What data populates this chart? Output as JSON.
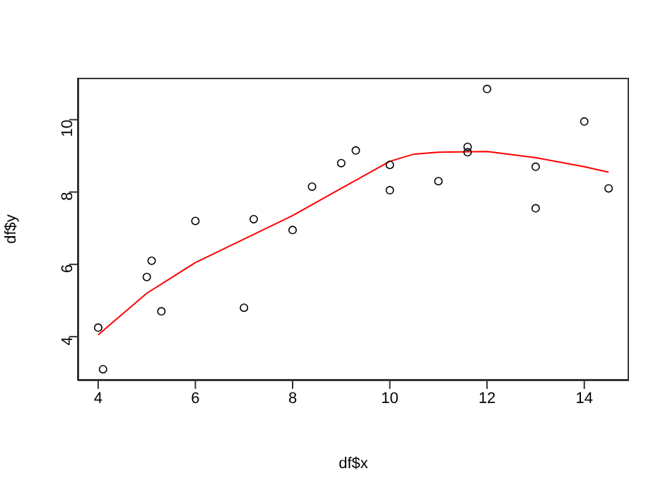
{
  "chart_data": {
    "type": "scatter",
    "xlabel": "df$x",
    "ylabel": "df$y",
    "xlim": [
      3.58,
      14.92
    ],
    "xticks": [
      4,
      6,
      8,
      10,
      12,
      14
    ],
    "ylim": [
      2.79,
      11.16
    ],
    "yticks": [
      4,
      6,
      8,
      10
    ],
    "grid": false,
    "marker": "circle",
    "series": [
      {
        "color": "#000000",
        "x": [
          4,
          4.1,
          5,
          5.1,
          5.3,
          6,
          7,
          7.2,
          8,
          8.4,
          9,
          9.3,
          10,
          10,
          11,
          11.6,
          11.6,
          12,
          13,
          13,
          14,
          14.5
        ],
        "values": [
          4.25,
          3.1,
          5.65,
          6.1,
          4.7,
          7.2,
          4.8,
          7.25,
          6.95,
          8.15,
          8.8,
          9.15,
          8.75,
          8.05,
          8.3,
          9.25,
          9.1,
          10.85,
          8.7,
          7.55,
          9.95,
          8.1
        ]
      },
      {
        "type": "line",
        "color": "#ff0000",
        "marker": "none",
        "line_style": "solid",
        "x": [
          4,
          5,
          6,
          7,
          8,
          9,
          10,
          10.5,
          11,
          12,
          13,
          14,
          14.5
        ],
        "values": [
          4.05,
          5.2,
          6.05,
          6.7,
          7.35,
          8.1,
          8.85,
          9.05,
          9.1,
          9.12,
          8.95,
          8.7,
          8.55
        ]
      }
    ]
  }
}
